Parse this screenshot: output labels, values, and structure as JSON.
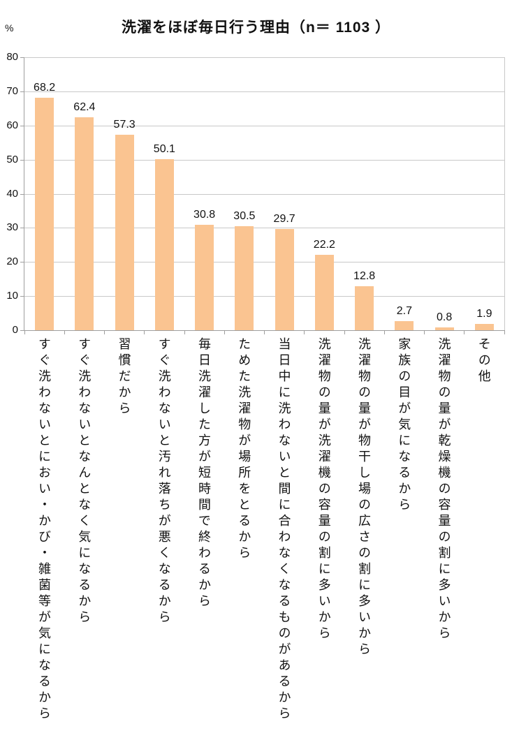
{
  "chart_data": {
    "type": "bar",
    "title": "洗濯をほぼ毎日行う理由（n＝ 1103 ）",
    "n": 1103,
    "categories": [
      "すぐ洗わないとにおい・かび・雑菌等が気になるから",
      "すぐ洗わないとなんとなく気になるから",
      "習慣だから",
      "すぐ洗わないと汚れ落ちが悪くなるから",
      "毎日洗濯した方が短時間で終わるから",
      "ためた洗濯物が場所をとるから",
      "当日中に洗わないと間に合わなくなるものがあるから",
      "洗濯物の量が洗濯機の容量の割に多いから",
      "洗濯物の量が物干し場の広さの割に多いから",
      "家族の目が気になるから",
      "洗濯物の量が乾燥機の容量の割に多いから",
      "その他"
    ],
    "values": [
      68.2,
      62.4,
      57.3,
      50.1,
      30.8,
      30.5,
      29.7,
      22.2,
      12.8,
      2.7,
      0.8,
      1.9
    ],
    "xlabel": "",
    "ylabel": "%",
    "ylim": [
      0,
      80
    ],
    "ytick_step": 10,
    "yticks": [
      "0",
      "10",
      "20",
      "30",
      "40",
      "50",
      "60",
      "70",
      "80"
    ],
    "grid": true,
    "legend": "none",
    "label_orientation": "vertical-upright",
    "bar_color": "#FAC491",
    "gridline_color": "#C8C8C8",
    "axis_color": "#9E9E9E",
    "text_color": "#111111"
  }
}
